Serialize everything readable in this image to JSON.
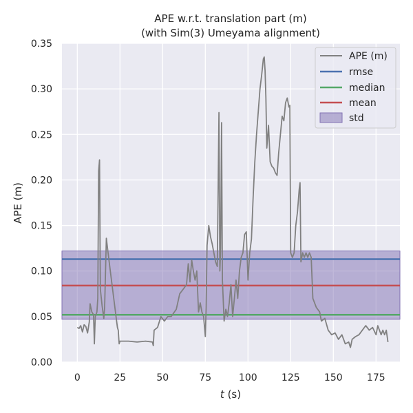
{
  "chart_data": {
    "type": "line",
    "title_line1": "APE w.r.t. translation part (m)",
    "title_line2": "(with Sim(3) Umeyama alignment)",
    "xlabel_var": "t",
    "xlabel_unit": " (s)",
    "ylabel": "APE (m)",
    "xlim": [
      -9,
      189
    ],
    "ylim": [
      0,
      0.35
    ],
    "xticks": [
      0,
      25,
      50,
      75,
      100,
      125,
      150,
      175
    ],
    "yticks": [
      0.0,
      0.05,
      0.1,
      0.15,
      0.2,
      0.25,
      0.3,
      0.35
    ],
    "ytick_labels": [
      "0.00",
      "0.05",
      "0.10",
      "0.15",
      "0.20",
      "0.25",
      "0.30",
      "0.35"
    ],
    "grid": true,
    "legend_position": "top-right",
    "legend": [
      "APE (m)",
      "rmse",
      "median",
      "mean",
      "std"
    ],
    "colors": {
      "background": "#eaeaf2",
      "grid": "#ffffff",
      "ape": "#808080",
      "rmse": "#4c72b0",
      "median": "#55a868",
      "mean": "#c44e52",
      "std": "#8172b3"
    },
    "stats": {
      "rmse": 0.113,
      "median": 0.052,
      "mean": 0.084,
      "std_low": 0.047,
      "std_high": 0.122
    },
    "series": [
      {
        "name": "APE (m)",
        "points": [
          [
            0,
            0.038
          ],
          [
            1,
            0.037
          ],
          [
            2,
            0.04
          ],
          [
            3,
            0.033
          ],
          [
            4,
            0.041
          ],
          [
            5,
            0.039
          ],
          [
            6,
            0.032
          ],
          [
            7,
            0.044
          ],
          [
            7.5,
            0.064
          ],
          [
            8.5,
            0.055
          ],
          [
            9.5,
            0.052
          ],
          [
            10,
            0.02
          ],
          [
            10.5,
            0.05
          ],
          [
            11.5,
            0.055
          ],
          [
            12,
            0.07
          ],
          [
            12.5,
            0.21
          ],
          [
            13,
            0.222
          ],
          [
            13.5,
            0.08
          ],
          [
            14.5,
            0.062
          ],
          [
            15.5,
            0.048
          ],
          [
            16,
            0.06
          ],
          [
            17,
            0.136
          ],
          [
            18,
            0.12
          ],
          [
            20,
            0.09
          ],
          [
            22,
            0.06
          ],
          [
            23,
            0.045
          ],
          [
            23.5,
            0.038
          ],
          [
            24,
            0.035
          ],
          [
            24.5,
            0.02
          ],
          [
            25,
            0.023
          ],
          [
            30,
            0.023
          ],
          [
            35,
            0.022
          ],
          [
            40,
            0.023
          ],
          [
            44,
            0.022
          ],
          [
            44.5,
            0.018
          ],
          [
            45,
            0.035
          ],
          [
            47,
            0.038
          ],
          [
            49,
            0.05
          ],
          [
            51,
            0.045
          ],
          [
            53,
            0.05
          ],
          [
            55,
            0.05
          ],
          [
            58,
            0.058
          ],
          [
            60,
            0.075
          ],
          [
            62,
            0.08
          ],
          [
            64,
            0.085
          ],
          [
            65,
            0.108
          ],
          [
            66,
            0.088
          ],
          [
            67,
            0.112
          ],
          [
            68,
            0.1
          ],
          [
            69,
            0.09
          ],
          [
            70,
            0.1
          ],
          [
            71,
            0.055
          ],
          [
            72,
            0.065
          ],
          [
            73,
            0.055
          ],
          [
            74,
            0.05
          ],
          [
            75,
            0.028
          ],
          [
            75.5,
            0.06
          ],
          [
            76,
            0.128
          ],
          [
            77,
            0.15
          ],
          [
            78,
            0.138
          ],
          [
            79,
            0.13
          ],
          [
            80,
            0.12
          ],
          [
            81,
            0.11
          ],
          [
            82,
            0.105
          ],
          [
            83,
            0.274
          ],
          [
            83.5,
            0.1
          ],
          [
            84,
            0.125
          ],
          [
            84.5,
            0.263
          ],
          [
            85,
            0.09
          ],
          [
            86,
            0.045
          ],
          [
            87,
            0.058
          ],
          [
            88,
            0.05
          ],
          [
            89,
            0.065
          ],
          [
            90,
            0.085
          ],
          [
            91,
            0.05
          ],
          [
            92,
            0.07
          ],
          [
            93,
            0.09
          ],
          [
            94,
            0.07
          ],
          [
            95,
            0.1
          ],
          [
            96,
            0.115
          ],
          [
            97,
            0.12
          ],
          [
            98,
            0.14
          ],
          [
            99,
            0.143
          ],
          [
            100,
            0.09
          ],
          [
            101,
            0.12
          ],
          [
            102,
            0.135
          ],
          [
            103,
            0.18
          ],
          [
            104,
            0.22
          ],
          [
            105,
            0.25
          ],
          [
            106,
            0.275
          ],
          [
            107,
            0.3
          ],
          [
            108,
            0.315
          ],
          [
            109,
            0.333
          ],
          [
            109.5,
            0.335
          ],
          [
            110,
            0.32
          ],
          [
            110.5,
            0.29
          ],
          [
            111,
            0.235
          ],
          [
            112,
            0.26
          ],
          [
            113,
            0.22
          ],
          [
            114,
            0.215
          ],
          [
            115,
            0.213
          ],
          [
            116,
            0.208
          ],
          [
            117,
            0.205
          ],
          [
            118,
            0.23
          ],
          [
            119,
            0.25
          ],
          [
            120,
            0.27
          ],
          [
            121,
            0.265
          ],
          [
            122,
            0.285
          ],
          [
            123,
            0.29
          ],
          [
            124,
            0.28
          ],
          [
            124.5,
            0.282
          ],
          [
            125,
            0.12
          ],
          [
            126,
            0.115
          ],
          [
            127,
            0.12
          ],
          [
            128,
            0.15
          ],
          [
            129,
            0.165
          ],
          [
            130,
            0.19
          ],
          [
            130.5,
            0.197
          ],
          [
            131,
            0.11
          ],
          [
            132,
            0.12
          ],
          [
            133,
            0.115
          ],
          [
            134,
            0.12
          ],
          [
            135,
            0.115
          ],
          [
            136,
            0.12
          ],
          [
            137,
            0.115
          ],
          [
            138,
            0.07
          ],
          [
            140,
            0.06
          ],
          [
            142,
            0.055
          ],
          [
            143,
            0.045
          ],
          [
            145,
            0.048
          ],
          [
            147,
            0.035
          ],
          [
            149,
            0.03
          ],
          [
            151,
            0.032
          ],
          [
            153,
            0.025
          ],
          [
            155,
            0.03
          ],
          [
            157,
            0.02
          ],
          [
            159,
            0.022
          ],
          [
            160,
            0.016
          ],
          [
            161,
            0.025
          ],
          [
            163,
            0.028
          ],
          [
            165,
            0.03
          ],
          [
            167,
            0.035
          ],
          [
            169,
            0.04
          ],
          [
            171,
            0.035
          ],
          [
            173,
            0.038
          ],
          [
            175,
            0.03
          ],
          [
            176,
            0.04
          ],
          [
            178,
            0.03
          ],
          [
            179,
            0.035
          ],
          [
            180,
            0.03
          ],
          [
            181,
            0.035
          ],
          [
            182,
            0.022
          ]
        ]
      }
    ]
  }
}
